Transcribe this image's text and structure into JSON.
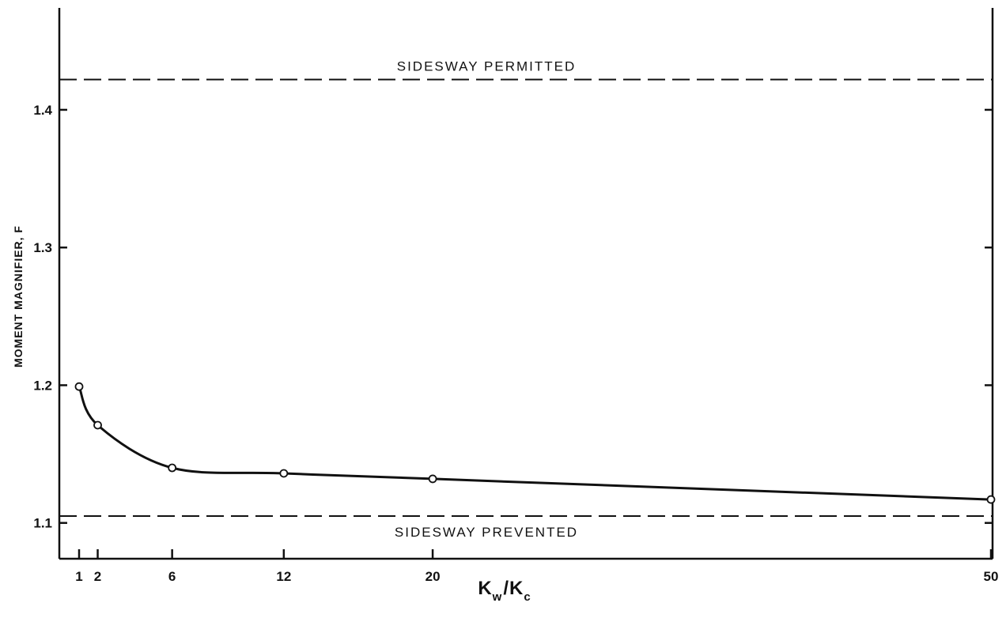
{
  "chart_data": {
    "type": "line",
    "title": "",
    "xlabel": {
      "main1": "K",
      "sub1": "w",
      "sep": "/",
      "main2": "K",
      "sub2": "c"
    },
    "ylabel": "MOMENT MAGNIFIER, F",
    "x_ticks": [
      1,
      2,
      6,
      12,
      20,
      50
    ],
    "y_ticks": [
      "1.1",
      "1.2",
      "1.3",
      "1.4"
    ],
    "xlim": [
      0,
      50
    ],
    "ylim": [
      1.074,
      1.474
    ],
    "grid": false,
    "legend": "none",
    "series": [
      {
        "values": [
          {
            "x": 1,
            "y": 1.199
          },
          {
            "x": 2,
            "y": 1.171
          },
          {
            "x": 6,
            "y": 1.14
          },
          {
            "x": 12,
            "y": 1.136
          },
          {
            "x": 20,
            "y": 1.132
          },
          {
            "x": 50,
            "y": 1.117
          }
        ],
        "markers": "open-circle",
        "color": "#111111"
      }
    ],
    "reference_lines": [
      {
        "label": "SIDESWAY PERMITTED",
        "y": 1.422,
        "style": "dashed"
      },
      {
        "label": "SIDESWAY PREVENTED",
        "y": 1.105,
        "style": "dashed"
      }
    ]
  }
}
